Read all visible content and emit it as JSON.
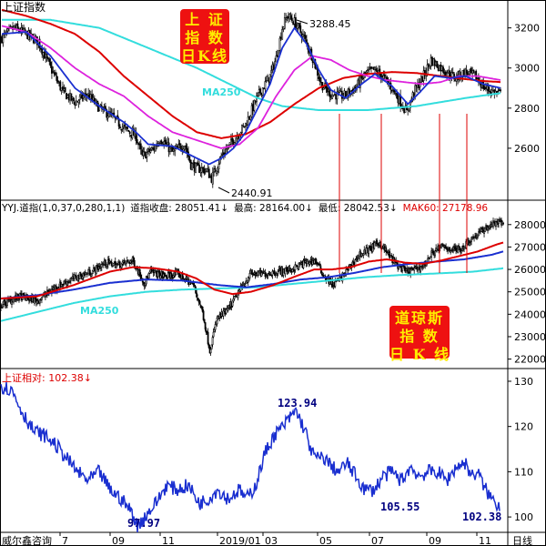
{
  "panel1": {
    "title": "上证指数",
    "badge_line1": "上 证",
    "badge_line2": "指 数",
    "badge_line3": "日K线",
    "high_label": "3288.45",
    "low_label": "2440.91",
    "ma_label": "MA250",
    "axis_ticks": [
      "3200",
      "3000",
      "2800",
      "2600"
    ]
  },
  "panel2": {
    "header_name": "YYJ.道指(1,0,37,0,280,1,1)",
    "header_close": "道指收盘: 28051.41↓",
    "header_high": "最高: 28164.00↓",
    "header_low": "最低: 28042.53↓",
    "header_ma": "MAK60: 27178.96",
    "badge_line1": "道琼斯",
    "badge_line2": "指 数",
    "badge_line3": "日 K 线",
    "ma_label": "MA250",
    "axis_ticks": [
      "28000",
      "27000",
      "26000",
      "25000",
      "24000",
      "23000",
      "22000"
    ]
  },
  "panel3": {
    "header": "上证相对: 102.38↓",
    "labels": [
      "123.94",
      "97.97",
      "105.55",
      "102.38"
    ],
    "axis_ticks": [
      "130",
      "120",
      "110",
      "100"
    ]
  },
  "footer": {
    "source": "威尔鑫咨询",
    "period": "日线",
    "x_ticks": [
      "7",
      "09",
      "11",
      "2019/01",
      "03",
      "05",
      "07",
      "09",
      "11"
    ]
  },
  "colors": {
    "candles": "#000000",
    "ma_fast": "#1a2fd0",
    "ma_magenta": "#dd22dd",
    "ma_red": "#dd0000",
    "ma250": "#33dddd",
    "relative_line": "#1a2fd0",
    "axis_text": "#000000",
    "header_red": "#dd0000",
    "relative_labels": "#000080",
    "badge_bg": "#ee1111",
    "badge_text": "#ffee00"
  },
  "chart_data": [
    {
      "type": "candlestick",
      "title": "上证指数",
      "ylim": [
        2350,
        3330
      ],
      "y_ticks": [
        2600,
        2800,
        3000,
        3200
      ],
      "extremes": {
        "high": 3288.45,
        "low": 2440.91
      },
      "close_anchors": [
        [
          0,
          3150
        ],
        [
          10,
          3200
        ],
        [
          20,
          3170
        ],
        [
          30,
          3130
        ],
        [
          40,
          3000
        ],
        [
          50,
          2880
        ],
        [
          60,
          2830
        ],
        [
          70,
          2870
        ],
        [
          80,
          2800
        ],
        [
          90,
          2760
        ],
        [
          100,
          2700
        ],
        [
          110,
          2660
        ],
        [
          115,
          2560
        ],
        [
          125,
          2600
        ],
        [
          130,
          2650
        ],
        [
          140,
          2580
        ],
        [
          150,
          2620
        ],
        [
          155,
          2520
        ],
        [
          160,
          2500
        ],
        [
          168,
          2490
        ],
        [
          172,
          2450
        ],
        [
          180,
          2560
        ],
        [
          190,
          2640
        ],
        [
          200,
          2720
        ],
        [
          210,
          2860
        ],
        [
          220,
          2960
        ],
        [
          225,
          3050
        ],
        [
          230,
          3200
        ],
        [
          234,
          3260
        ],
        [
          240,
          3230
        ],
        [
          248,
          3150
        ],
        [
          255,
          3050
        ],
        [
          262,
          2920
        ],
        [
          270,
          2870
        ],
        [
          280,
          2860
        ],
        [
          290,
          2900
        ],
        [
          298,
          2970
        ],
        [
          305,
          2990
        ],
        [
          312,
          2960
        ],
        [
          320,
          2900
        ],
        [
          328,
          2820
        ],
        [
          332,
          2780
        ],
        [
          338,
          2880
        ],
        [
          345,
          2950
        ],
        [
          352,
          3040
        ],
        [
          358,
          3010
        ],
        [
          365,
          2980
        ],
        [
          372,
          2950
        ],
        [
          380,
          2980
        ],
        [
          388,
          2960
        ],
        [
          396,
          2900
        ],
        [
          404,
          2880
        ],
        [
          409,
          2870
        ]
      ],
      "ma_fast_anchors": [
        [
          0,
          3170
        ],
        [
          20,
          3180
        ],
        [
          40,
          3060
        ],
        [
          60,
          2900
        ],
        [
          80,
          2810
        ],
        [
          100,
          2730
        ],
        [
          110,
          2680
        ],
        [
          120,
          2620
        ],
        [
          140,
          2610
        ],
        [
          160,
          2550
        ],
        [
          170,
          2520
        ],
        [
          180,
          2550
        ],
        [
          190,
          2600
        ],
        [
          200,
          2680
        ],
        [
          210,
          2800
        ],
        [
          220,
          2920
        ],
        [
          230,
          3100
        ],
        [
          240,
          3200
        ],
        [
          250,
          3120
        ],
        [
          260,
          2990
        ],
        [
          270,
          2890
        ],
        [
          282,
          2850
        ],
        [
          295,
          2920
        ],
        [
          306,
          2970
        ],
        [
          320,
          2910
        ],
        [
          333,
          2820
        ],
        [
          343,
          2880
        ],
        [
          355,
          2960
        ],
        [
          368,
          2950
        ],
        [
          380,
          2960
        ],
        [
          395,
          2920
        ],
        [
          409,
          2900
        ]
      ],
      "ma_magenta_anchors": [
        [
          0,
          3210
        ],
        [
          20,
          3180
        ],
        [
          40,
          3100
        ],
        [
          60,
          3000
        ],
        [
          80,
          2920
        ],
        [
          100,
          2860
        ],
        [
          120,
          2760
        ],
        [
          140,
          2680
        ],
        [
          160,
          2640
        ],
        [
          170,
          2620
        ],
        [
          180,
          2600
        ],
        [
          195,
          2620
        ],
        [
          210,
          2700
        ],
        [
          225,
          2860
        ],
        [
          240,
          2990
        ],
        [
          255,
          3060
        ],
        [
          270,
          3040
        ],
        [
          285,
          2990
        ],
        [
          300,
          2960
        ],
        [
          315,
          2940
        ],
        [
          330,
          2930
        ],
        [
          345,
          2920
        ],
        [
          360,
          2930
        ],
        [
          375,
          2960
        ],
        [
          390,
          2960
        ],
        [
          409,
          2940
        ]
      ],
      "ma_red_anchors": [
        [
          0,
          3290
        ],
        [
          20,
          3260
        ],
        [
          40,
          3220
        ],
        [
          60,
          3170
        ],
        [
          80,
          3080
        ],
        [
          100,
          2960
        ],
        [
          120,
          2860
        ],
        [
          140,
          2760
        ],
        [
          160,
          2680
        ],
        [
          180,
          2650
        ],
        [
          200,
          2670
        ],
        [
          220,
          2730
        ],
        [
          240,
          2820
        ],
        [
          260,
          2900
        ],
        [
          280,
          2950
        ],
        [
          300,
          2970
        ],
        [
          320,
          2980
        ],
        [
          340,
          2975
        ],
        [
          360,
          2960
        ],
        [
          380,
          2945
        ],
        [
          395,
          2935
        ],
        [
          409,
          2930
        ]
      ],
      "ma250_anchors": [
        [
          0,
          3240
        ],
        [
          40,
          3240
        ],
        [
          80,
          3200
        ],
        [
          120,
          3100
        ],
        [
          160,
          3000
        ],
        [
          190,
          2910
        ],
        [
          210,
          2850
        ],
        [
          230,
          2810
        ],
        [
          260,
          2790
        ],
        [
          300,
          2790
        ],
        [
          340,
          2810
        ],
        [
          380,
          2850
        ],
        [
          409,
          2875
        ]
      ]
    },
    {
      "type": "candlestick",
      "title": "YYJ.道指(1,0,37,0,280,1,1)",
      "ylim": [
        21700,
        28600
      ],
      "y_ticks": [
        22000,
        23000,
        24000,
        25000,
        26000,
        27000,
        28000
      ],
      "last": {
        "close": 28051.41,
        "high": 28164.0,
        "low": 28042.53,
        "mak60": 27178.96
      },
      "close_anchors": [
        [
          0,
          24400
        ],
        [
          20,
          24800
        ],
        [
          40,
          24600
        ],
        [
          60,
          25200
        ],
        [
          80,
          25600
        ],
        [
          100,
          25900
        ],
        [
          115,
          26300
        ],
        [
          130,
          26200
        ],
        [
          145,
          26400
        ],
        [
          158,
          25400
        ],
        [
          165,
          25900
        ],
        [
          180,
          25700
        ],
        [
          195,
          25800
        ],
        [
          212,
          25300
        ],
        [
          222,
          24100
        ],
        [
          230,
          22400
        ],
        [
          238,
          23800
        ],
        [
          250,
          24200
        ],
        [
          262,
          25000
        ],
        [
          275,
          25800
        ],
        [
          290,
          25800
        ],
        [
          305,
          25900
        ],
        [
          320,
          26000
        ],
        [
          335,
          26300
        ],
        [
          346,
          26400
        ],
        [
          356,
          25700
        ],
        [
          366,
          25300
        ],
        [
          376,
          25700
        ],
        [
          386,
          26200
        ],
        [
          396,
          26700
        ],
        [
          406,
          26900
        ],
        [
          416,
          27200
        ],
        [
          426,
          26700
        ],
        [
          436,
          26200
        ],
        [
          446,
          25900
        ],
        [
          456,
          26000
        ],
        [
          466,
          26200
        ],
        [
          476,
          26800
        ],
        [
          486,
          27000
        ],
        [
          496,
          26900
        ],
        [
          506,
          26900
        ],
        [
          516,
          27300
        ],
        [
          526,
          27600
        ],
        [
          536,
          27900
        ],
        [
          546,
          28100
        ],
        [
          553,
          28050
        ]
      ],
      "ma_fast_anchors": [
        [
          0,
          24700
        ],
        [
          40,
          24800
        ],
        [
          80,
          25300
        ],
        [
          120,
          25900
        ],
        [
          145,
          26100
        ],
        [
          170,
          26050
        ],
        [
          195,
          25900
        ],
        [
          215,
          25600
        ],
        [
          235,
          25100
        ],
        [
          255,
          24900
        ],
        [
          275,
          25000
        ],
        [
          300,
          25300
        ],
        [
          325,
          25700
        ],
        [
          345,
          26000
        ],
        [
          365,
          26000
        ],
        [
          385,
          26100
        ],
        [
          405,
          26350
        ],
        [
          425,
          26450
        ],
        [
          445,
          26300
        ],
        [
          465,
          26250
        ],
        [
          485,
          26400
        ],
        [
          505,
          26600
        ],
        [
          525,
          26800
        ],
        [
          545,
          27100
        ],
        [
          553,
          27200
        ]
      ],
      "ma_blue_anchors": [
        [
          0,
          24700
        ],
        [
          40,
          24850
        ],
        [
          80,
          25100
        ],
        [
          120,
          25400
        ],
        [
          160,
          25550
        ],
        [
          200,
          25500
        ],
        [
          240,
          25300
        ],
        [
          270,
          25200
        ],
        [
          300,
          25350
        ],
        [
          330,
          25550
        ],
        [
          360,
          25650
        ],
        [
          390,
          25850
        ],
        [
          420,
          26100
        ],
        [
          450,
          26250
        ],
        [
          480,
          26350
        ],
        [
          510,
          26450
        ],
        [
          540,
          26650
        ],
        [
          553,
          26800
        ]
      ],
      "ma250_anchors": [
        [
          0,
          23700
        ],
        [
          40,
          24100
        ],
        [
          80,
          24500
        ],
        [
          120,
          24800
        ],
        [
          160,
          25000
        ],
        [
          200,
          25100
        ],
        [
          240,
          25150
        ],
        [
          280,
          25200
        ],
        [
          320,
          25350
        ],
        [
          360,
          25500
        ],
        [
          400,
          25650
        ],
        [
          440,
          25750
        ],
        [
          480,
          25820
        ],
        [
          520,
          25900
        ],
        [
          553,
          26050
        ]
      ]
    },
    {
      "type": "line",
      "title": "上证相对",
      "ylim": [
        97,
        131
      ],
      "y_ticks": [
        100,
        110,
        120,
        130
      ],
      "last": 102.38,
      "annotations": [
        {
          "value": 123.94
        },
        {
          "value": 97.97
        },
        {
          "value": 105.55
        },
        {
          "value": 102.38
        }
      ],
      "anchors": [
        [
          0,
          129
        ],
        [
          12,
          128
        ],
        [
          24,
          123
        ],
        [
          36,
          119
        ],
        [
          48,
          118
        ],
        [
          60,
          116
        ],
        [
          72,
          113
        ],
        [
          84,
          110
        ],
        [
          96,
          108
        ],
        [
          108,
          110
        ],
        [
          120,
          106
        ],
        [
          132,
          104
        ],
        [
          144,
          101
        ],
        [
          150,
          98
        ],
        [
          158,
          100
        ],
        [
          170,
          103
        ],
        [
          182,
          107
        ],
        [
          194,
          106
        ],
        [
          206,
          107
        ],
        [
          218,
          103
        ],
        [
          228,
          104
        ],
        [
          238,
          106
        ],
        [
          250,
          104
        ],
        [
          262,
          106
        ],
        [
          270,
          104
        ],
        [
          280,
          107
        ],
        [
          290,
          114
        ],
        [
          300,
          118
        ],
        [
          310,
          120
        ],
        [
          318,
          122
        ],
        [
          324,
          123.5
        ],
        [
          330,
          121
        ],
        [
          336,
          118
        ],
        [
          342,
          114
        ],
        [
          348,
          113
        ],
        [
          356,
          113
        ],
        [
          364,
          111
        ],
        [
          372,
          110
        ],
        [
          380,
          112
        ],
        [
          390,
          109
        ],
        [
          400,
          106
        ],
        [
          410,
          106
        ],
        [
          420,
          109
        ],
        [
          430,
          110
        ],
        [
          440,
          108
        ],
        [
          450,
          111
        ],
        [
          460,
          109
        ],
        [
          470,
          110
        ],
        [
          480,
          110
        ],
        [
          490,
          108
        ],
        [
          500,
          111
        ],
        [
          510,
          112
        ],
        [
          518,
          109
        ],
        [
          524,
          110
        ],
        [
          530,
          107
        ],
        [
          536,
          105
        ],
        [
          542,
          103.5
        ],
        [
          548,
          102.4
        ]
      ]
    }
  ]
}
